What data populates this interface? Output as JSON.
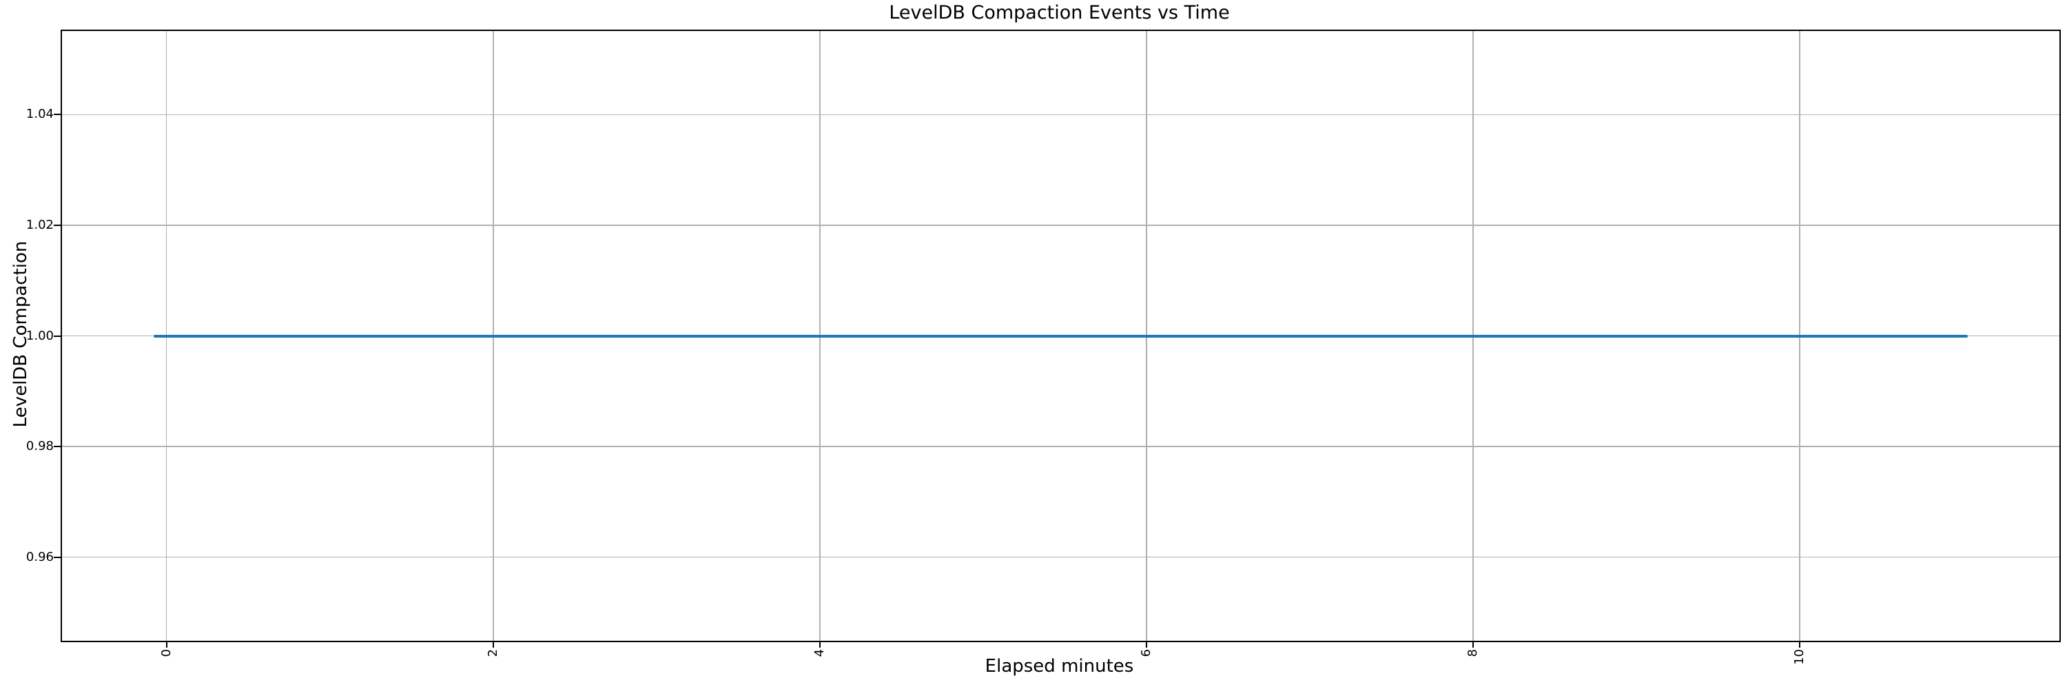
{
  "figure": {
    "background_color": "#ffffff",
    "text_color": "#000000"
  },
  "chart_data": {
    "type": "line",
    "title": "LevelDB Compaction Events vs Time",
    "xlabel": "Elapsed minutes",
    "ylabel": "LevelDB Compaction",
    "xlim": [
      -0.64,
      11.59
    ],
    "ylim": [
      0.9449,
      1.0551
    ],
    "grid": true,
    "legend": false,
    "grid_color": "#b0b0b0",
    "axis_color": "#000000",
    "x_tick_label_rotation_deg": 90,
    "x_ticks": [
      {
        "value": 0,
        "label": "0"
      },
      {
        "value": 2,
        "label": "2"
      },
      {
        "value": 4,
        "label": "4"
      },
      {
        "value": 6,
        "label": "6"
      },
      {
        "value": 8,
        "label": "8"
      },
      {
        "value": 10,
        "label": "10"
      }
    ],
    "y_ticks": [
      {
        "value": 0.96,
        "label": "0.96"
      },
      {
        "value": 0.98,
        "label": "0.98"
      },
      {
        "value": 1.0,
        "label": "1.00"
      },
      {
        "value": 1.02,
        "label": "1.02"
      },
      {
        "value": 1.04,
        "label": "1.04"
      }
    ],
    "series": [
      {
        "name": "LevelDB Compaction",
        "color": "#1f77b4",
        "x": [
          -0.08,
          11.03
        ],
        "y": [
          1.0,
          1.0
        ]
      }
    ]
  }
}
